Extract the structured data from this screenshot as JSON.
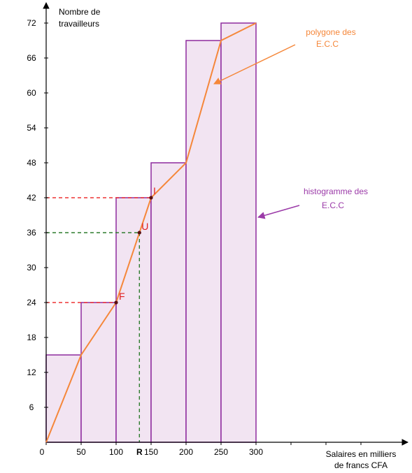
{
  "chart_data": {
    "type": "histogram",
    "ylabel": [
      "Nombre de",
      "travailleurs"
    ],
    "xlabel": [
      "Salaires en milliers",
      "de francs CFA"
    ],
    "x_ticks": [
      "0",
      "50",
      "100",
      "150",
      "200",
      "250",
      "300"
    ],
    "y_ticks": [
      "6",
      "12",
      "18",
      "24",
      "30",
      "36",
      "42",
      "48",
      "54",
      "60",
      "66",
      "72"
    ],
    "xlim": [
      0,
      500
    ],
    "ylim": [
      0,
      72
    ],
    "histogram": {
      "name": [
        "histogramme des",
        "E.C.C"
      ],
      "bins": [
        {
          "from": 0,
          "to": 50,
          "value": 15
        },
        {
          "from": 50,
          "to": 100,
          "value": 24
        },
        {
          "from": 100,
          "to": 150,
          "value": 42
        },
        {
          "from": 150,
          "to": 200,
          "value": 48
        },
        {
          "from": 200,
          "to": 250,
          "value": 69
        },
        {
          "from": 250,
          "to": 300,
          "value": 72
        }
      ]
    },
    "polygon": {
      "name": [
        "polygone des",
        "E.C.C"
      ],
      "points": [
        [
          0,
          0
        ],
        [
          50,
          15
        ],
        [
          100,
          24
        ],
        [
          150,
          42
        ],
        [
          200,
          48
        ],
        [
          250,
          69
        ],
        [
          300,
          72
        ]
      ]
    },
    "marked_points": [
      {
        "label": "F",
        "x": 100,
        "y": 24
      },
      {
        "label": "U",
        "x": 133.3,
        "y": 36
      },
      {
        "label": "I",
        "x": 150,
        "y": 42
      }
    ],
    "reading": {
      "label": "R",
      "value_label": "36",
      "x": 133.3,
      "y": 36
    },
    "colors": {
      "bar_fill": "#f2e4f2",
      "bar_stroke": "#8e2b9e",
      "polygon": "#f5873a",
      "red_guides": "#ee3333",
      "green_guides": "#2f7d2f",
      "green_text": "#2fa84f",
      "point_label": "#e02020"
    }
  }
}
